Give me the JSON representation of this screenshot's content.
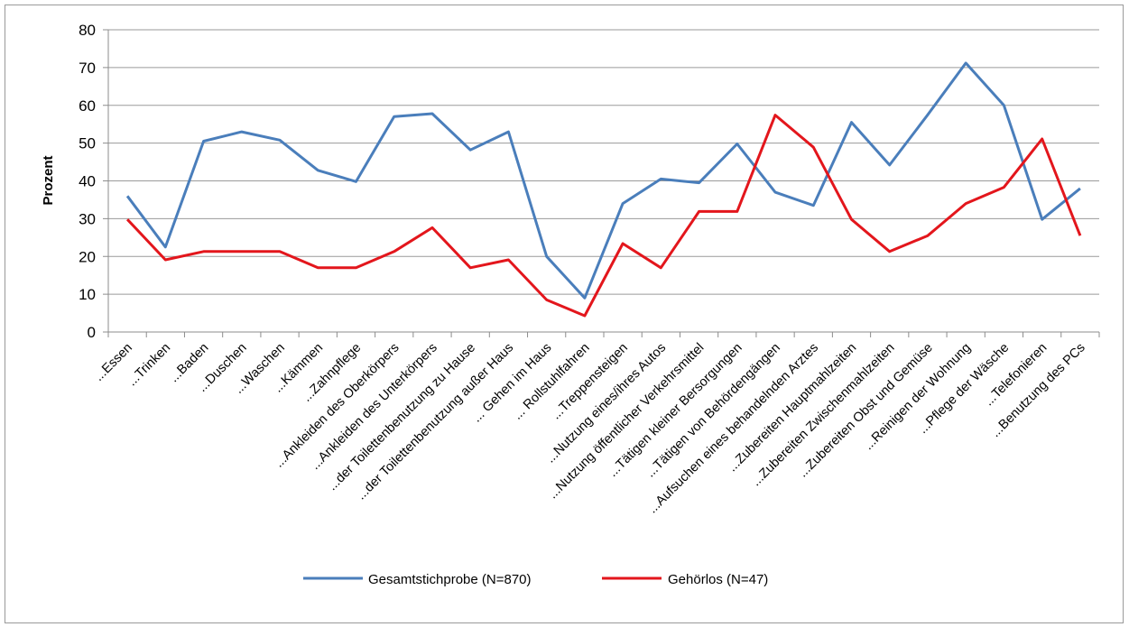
{
  "chart_data": {
    "type": "line",
    "ylabel": "Prozent",
    "xlabel": "",
    "title": "",
    "ylim": [
      0,
      80
    ],
    "yticks": [
      "0",
      "10",
      "20",
      "30",
      "40",
      "50",
      "60",
      "70",
      "80"
    ],
    "grid": "horizontal",
    "legend_position": "bottom",
    "categories": [
      "...Essen",
      "...Trinken",
      "...Baden",
      "...Duschen",
      "...Waschen",
      "...Kämmen",
      "...Zahnpflege",
      "...Ankleiden des Oberkörpers",
      "...Ankleiden des Unterkörpers",
      "...der Toilettenbenutzung zu Hause",
      "...der Toilettenbenutzung außer Haus",
      "... Gehen im Haus",
      "... Rollstuhlfahren",
      "...Treppensteigen",
      "...Nutzung eines/ihres Autos",
      "...Nutzung öffentlicher Verkehrsmittel",
      "...Tätigen kleiner Bersorgungen",
      "...Tätigen von Behördengängen",
      "...Aufsuchen eines behandelnden Arztes",
      "...Zubereiten Hauptmahlzeiten",
      "...Zubereiten Zwischenmahlzeiten",
      "...Zubereiten Obst und Gemüse",
      "...Reinigen der Wohnung",
      "...Pflege der Wäsche",
      "...Telefonieren",
      "...Benutzung des PCs"
    ],
    "series": [
      {
        "name": "Gesamtstichprobe (N=870)",
        "color": "#4a7ebb",
        "values": [
          36,
          22.5,
          50.5,
          53,
          50.8,
          42.8,
          39.8,
          57,
          57.8,
          48.2,
          53,
          20,
          9,
          34,
          40.5,
          39.5,
          49.8,
          37,
          33.5,
          55.5,
          44.2,
          57.5,
          71.2,
          60,
          29.8,
          38
        ]
      },
      {
        "name": "Gehörlos (N=47)",
        "color": "#e3161c",
        "values": [
          29.8,
          19.1,
          21.3,
          21.3,
          21.3,
          17,
          17,
          21.3,
          27.6,
          17,
          19.1,
          8.5,
          4.3,
          23.4,
          17,
          31.9,
          31.9,
          57.4,
          48.9,
          29.8,
          21.3,
          25.5,
          34,
          38.3,
          51.1,
          25.5
        ]
      }
    ]
  }
}
